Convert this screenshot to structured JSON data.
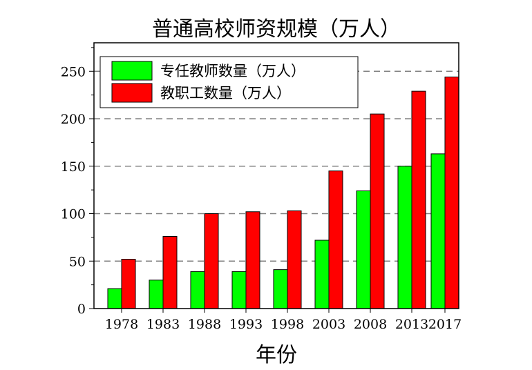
{
  "chart_data": {
    "type": "bar",
    "title": "普通高校师资规模（万人）",
    "xlabel": "年份",
    "ylabel": "",
    "categories": [
      "1978",
      "1983",
      "1988",
      "1993",
      "1998",
      "2003",
      "2008",
      "2013",
      "2017"
    ],
    "series": [
      {
        "name": "专任教师数量（万人）",
        "color": "#00ff00",
        "values": [
          21,
          30,
          39,
          39,
          41,
          72,
          124,
          150,
          163
        ]
      },
      {
        "name": "教职工数量（万人）",
        "color": "#ff0000",
        "values": [
          52,
          76,
          100,
          102,
          103,
          145,
          205,
          229,
          244
        ]
      }
    ],
    "ylim": [
      0,
      280
    ],
    "yticks": [
      0,
      50,
      100,
      150,
      200,
      250
    ],
    "grid": "horizontal dashed",
    "legend_position": "top-left"
  }
}
